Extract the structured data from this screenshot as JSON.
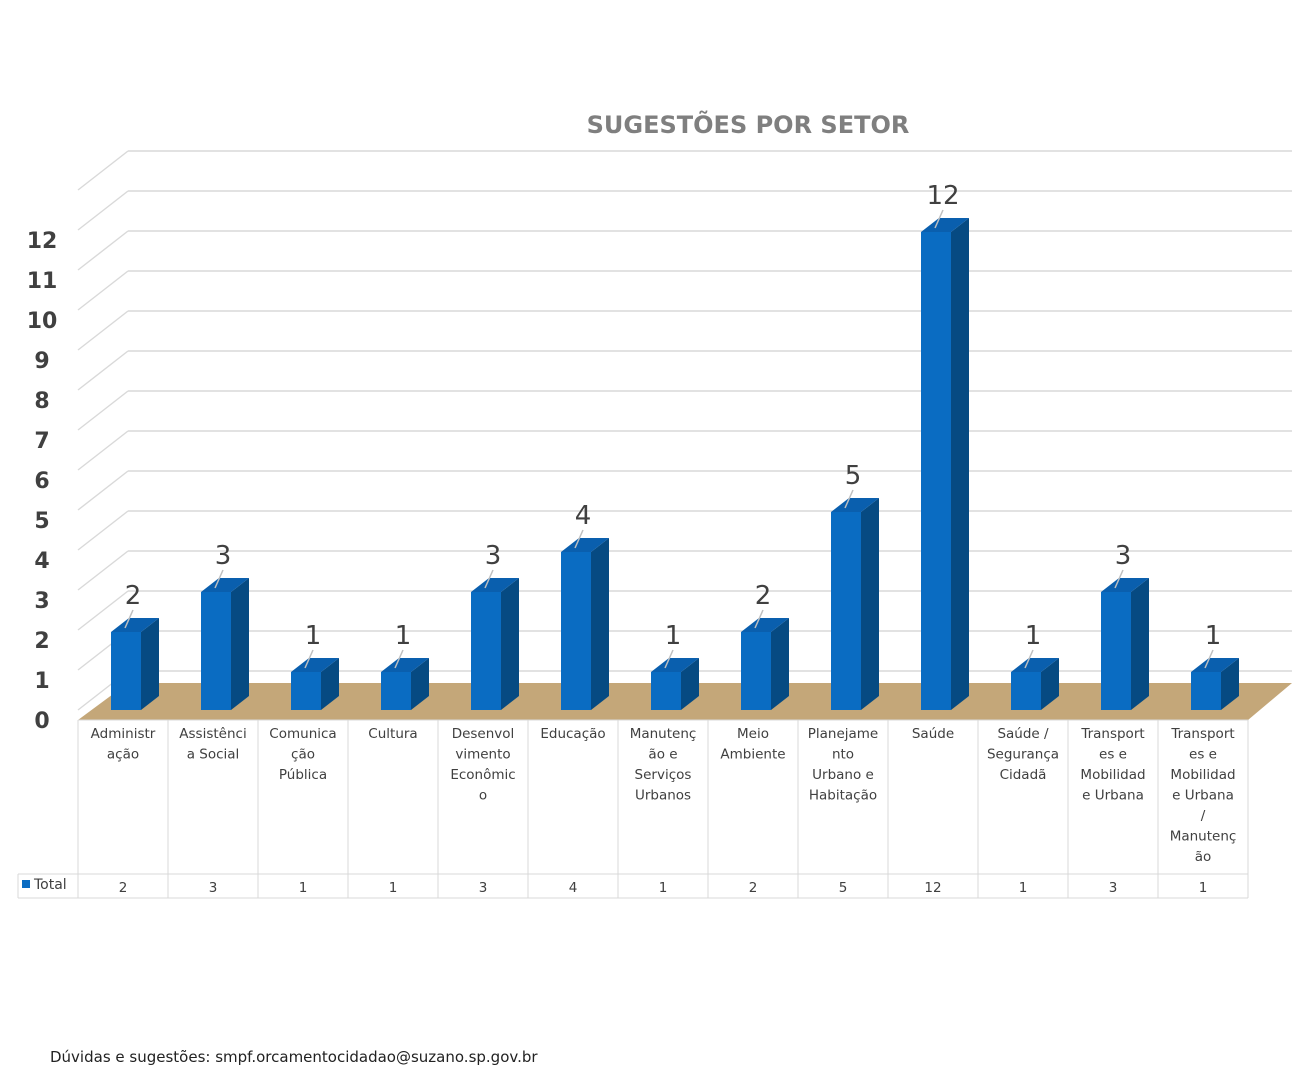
{
  "footer": {
    "text": "Dúvidas e sugestões: smpf.orcamentocidadao@suzano.sp.gov.br"
  },
  "colors": {
    "bar_front": "#0a6cc2",
    "bar_side": "#064a82",
    "bar_top": "#0a5fae",
    "floor": "#c4a779",
    "grid": "#d9d9d9",
    "title": "#7f7f7f",
    "axis_text": "#404040"
  },
  "chart_data": {
    "type": "bar",
    "title": "SUGESTÕES POR SETOR",
    "ylim": [
      0,
      12
    ],
    "yticks": [
      "0",
      "1",
      "2",
      "3",
      "4",
      "5",
      "6",
      "7",
      "8",
      "9",
      "10",
      "11",
      "12"
    ],
    "grid": true,
    "categories": [
      [
        "Administr",
        "ação"
      ],
      [
        "Assistênci",
        "a Social"
      ],
      [
        "Comunica",
        "ção",
        "Pública"
      ],
      [
        "Cultura"
      ],
      [
        "Desenvol",
        "vimento",
        "Econômic",
        "o"
      ],
      [
        "Educação"
      ],
      [
        "Manutenç",
        "ão e",
        "Serviços",
        "Urbanos"
      ],
      [
        "Meio",
        "Ambiente"
      ],
      [
        "Planejame",
        "nto",
        "Urbano e",
        "Habitação"
      ],
      [
        "Saúde"
      ],
      [
        "Saúde /",
        "Segurança",
        "Cidadã"
      ],
      [
        "Transport",
        "es e",
        "Mobilidad",
        "e Urbana"
      ],
      [
        "Transport",
        "es e",
        "Mobilidad",
        "e Urbana",
        "/",
        "Manutenç",
        "ão"
      ]
    ],
    "series": [
      {
        "name": "Total",
        "values": [
          2,
          3,
          1,
          1,
          3,
          4,
          1,
          2,
          5,
          12,
          1,
          3,
          1
        ]
      }
    ],
    "data_table": true
  }
}
